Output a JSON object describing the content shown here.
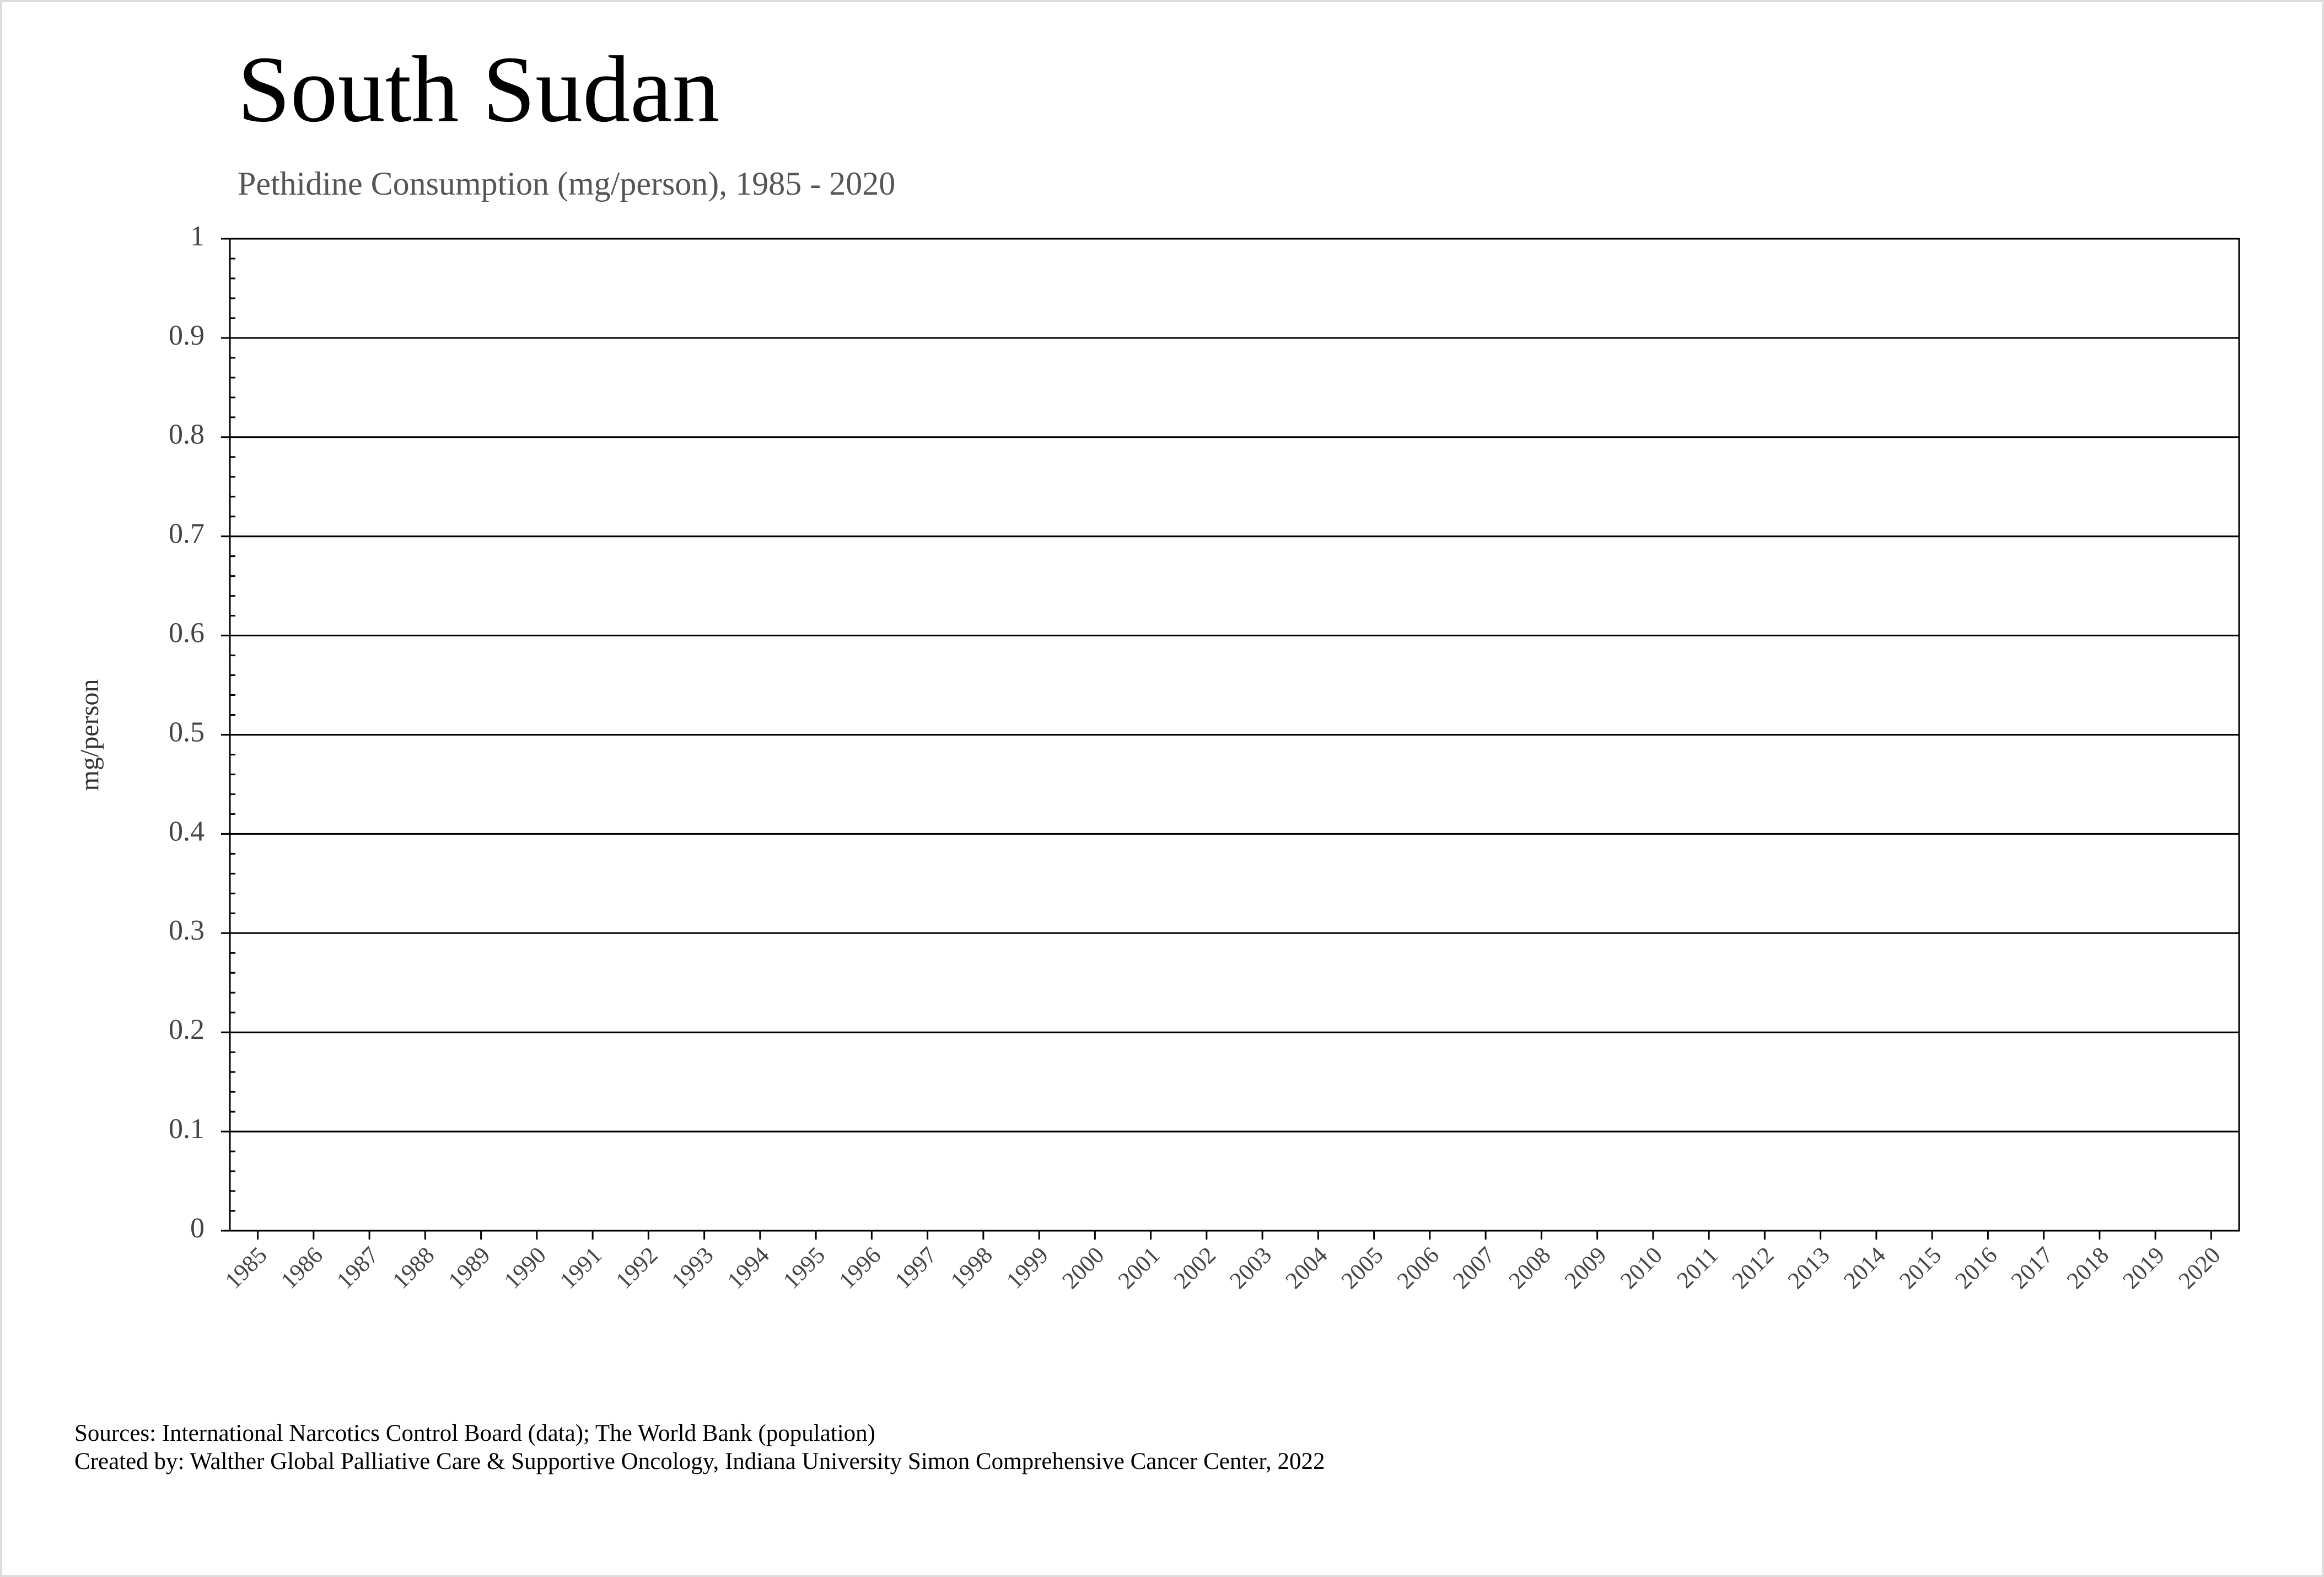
{
  "chart_data": {
    "type": "line",
    "title": "South Sudan",
    "subtitle": "Pethidine Consumption (mg/person), 1985 - 2020",
    "y_label": "mg/person",
    "categories": [
      "1985",
      "1986",
      "1987",
      "1988",
      "1989",
      "1990",
      "1991",
      "1992",
      "1993",
      "1994",
      "1995",
      "1996",
      "1997",
      "1998",
      "1999",
      "2000",
      "2001",
      "2002",
      "2003",
      "2004",
      "2005",
      "2006",
      "2007",
      "2008",
      "2009",
      "2010",
      "2011",
      "2012",
      "2013",
      "2014",
      "2015",
      "2016",
      "2017",
      "2018",
      "2019",
      "2020"
    ],
    "values": [
      null,
      null,
      null,
      null,
      null,
      null,
      null,
      null,
      null,
      null,
      null,
      null,
      null,
      null,
      null,
      null,
      null,
      null,
      null,
      null,
      null,
      null,
      null,
      null,
      null,
      null,
      null,
      null,
      null,
      null,
      null,
      null,
      null,
      null,
      null,
      null
    ],
    "color": "#1f4e79",
    "ylim": [
      0,
      1
    ],
    "yticks": [
      0,
      0.1,
      0.2,
      0.3,
      0.4,
      0.5,
      0.6,
      0.7,
      0.8,
      0.9,
      1
    ],
    "grid": true,
    "sources": [
      "Sources: International Narcotics Control Board (data); The World Bank (population)",
      "Created by: Walther Global Palliative Care & Supportive Oncology, Indiana University Simon Comprehensive Cancer Center, 2022"
    ]
  }
}
